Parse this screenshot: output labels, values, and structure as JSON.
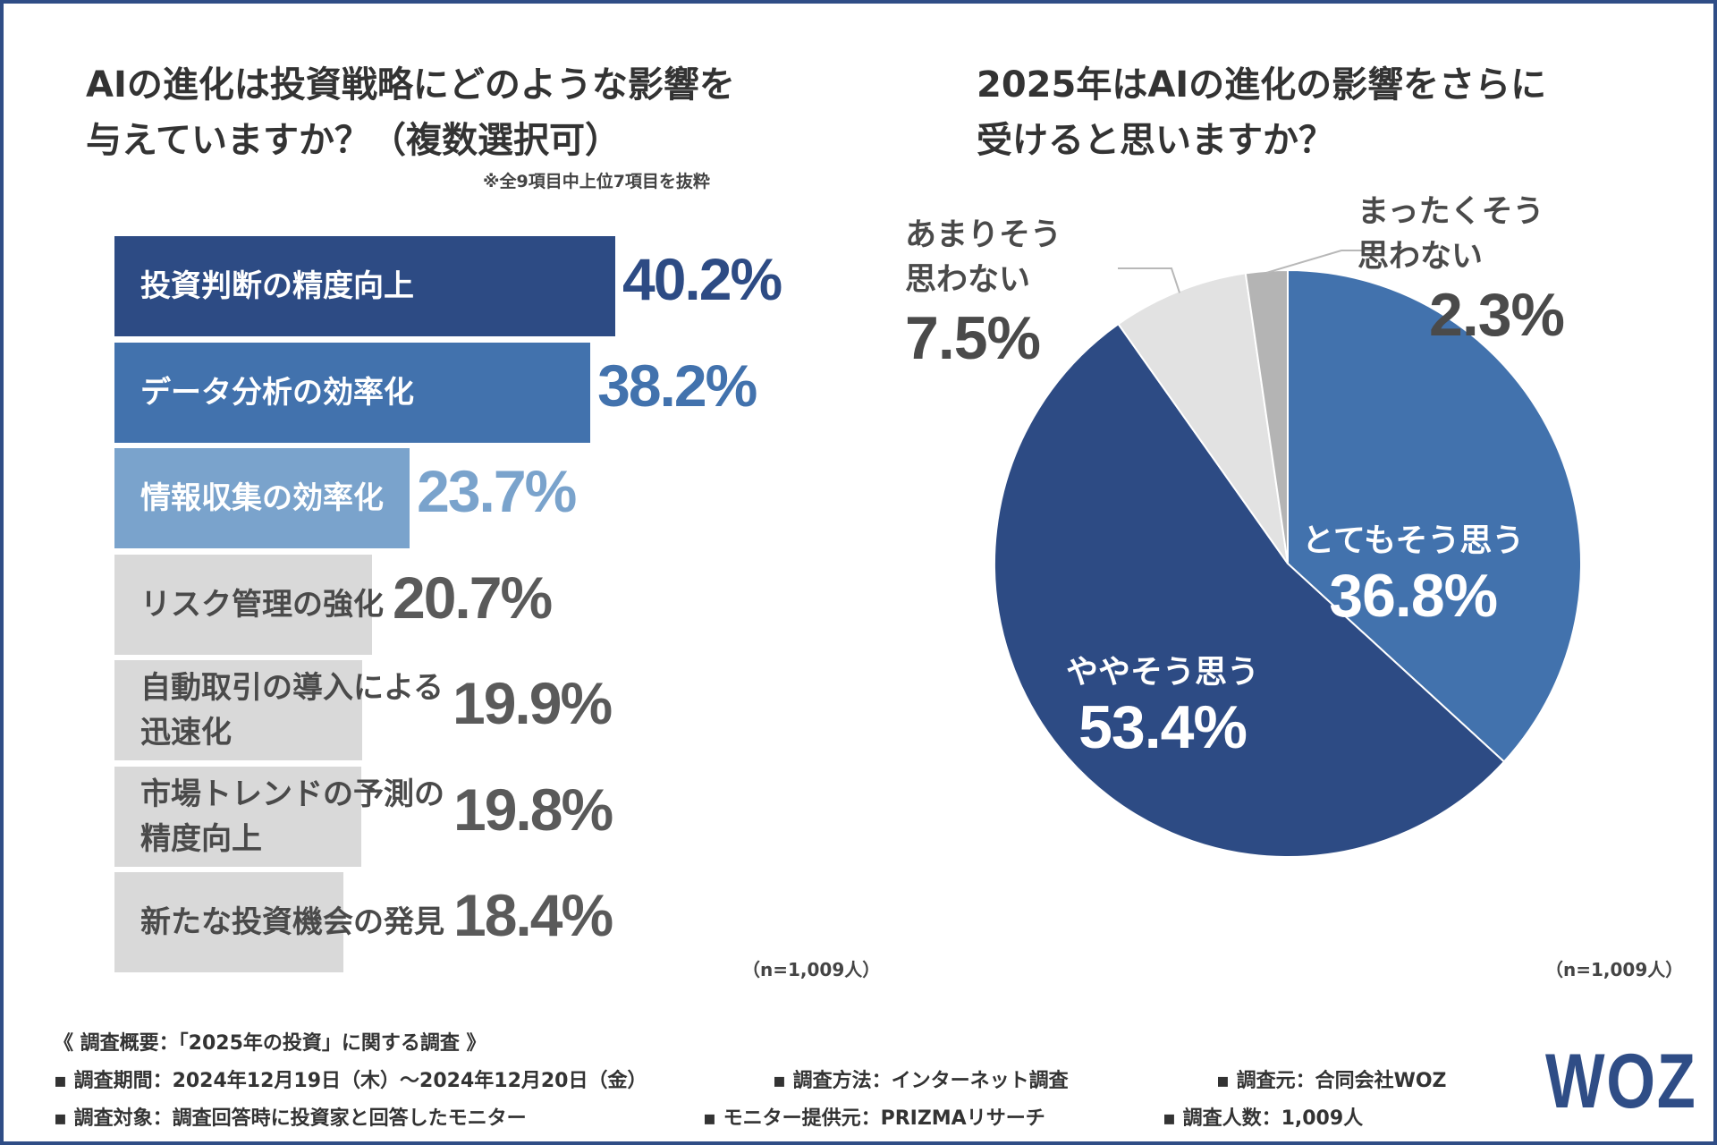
{
  "left_chart": {
    "title_line1": "AIの進化は投資戦略にどのような影響を",
    "title_line2": "与えていますか？（複数選択可）",
    "note": "※全9項目中上位7項目を抜粋",
    "n_note": "（n=1,009人）"
  },
  "right_chart": {
    "title_line1": "2025年はAIの進化の影響をさらに",
    "title_line2": "受けると思いますか？",
    "n_note": "（n=1,009人）"
  },
  "chart_data": [
    {
      "type": "bar",
      "orientation": "horizontal",
      "title": "AIの進化は投資戦略にどのような影響を与えていますか？（複数選択可）",
      "categories": [
        "投資判断の精度向上",
        "データ分析の効率化",
        "情報収集の効率化",
        "リスク管理の強化",
        "自動取引の導入による迅速化",
        "市場トレンドの予測の精度向上",
        "新たな投資機会の発見"
      ],
      "labels_display": [
        [
          "投資判断の精度向上"
        ],
        [
          "データ分析の効率化"
        ],
        [
          "情報収集の効率化"
        ],
        [
          "リスク管理の強化"
        ],
        [
          "自動取引の導入による",
          "迅速化"
        ],
        [
          "市場トレンドの予測の",
          "精度向上"
        ],
        [
          "新たな投資機会の発見"
        ]
      ],
      "values": [
        40.2,
        38.2,
        23.7,
        20.7,
        19.9,
        19.8,
        18.4
      ],
      "value_labels": [
        "40.2%",
        "38.2%",
        "23.7%",
        "20.7%",
        "19.9%",
        "19.8%",
        "18.4%"
      ],
      "unit": "%",
      "xlim": [
        0,
        100
      ],
      "colors": [
        "#2d4b84",
        "#4272ad",
        "#7aa3cc",
        "#d9d9d9",
        "#d9d9d9",
        "#d9d9d9",
        "#d9d9d9"
      ],
      "value_colors": [
        "#2d4b84",
        "#4272ad",
        "#7aa3cc",
        "#5a5a5a",
        "#5a5a5a",
        "#5a5a5a",
        "#5a5a5a"
      ]
    },
    {
      "type": "pie",
      "title": "2025年はAIの進化の影響をさらに受けると思いますか？",
      "slices": [
        {
          "label": "とてもそう思う",
          "value": 36.8,
          "value_label": "36.8%",
          "color": "#4272ad"
        },
        {
          "label": "ややそう思う",
          "value": 53.4,
          "value_label": "53.4%",
          "color": "#2d4b84"
        },
        {
          "label_lines": [
            "あまりそう",
            "思わない"
          ],
          "label": "あまりそう思わない",
          "value": 7.5,
          "value_label": "7.5%",
          "color": "#e2e2e2"
        },
        {
          "label_lines": [
            "まったくそう",
            "思わない"
          ],
          "label": "まったくそう思わない",
          "value": 2.3,
          "value_label": "2.3%",
          "color": "#b4b4b4"
        }
      ]
    }
  ],
  "footer": {
    "heading": "《 調査概要：「2025年の投資」に関する調査 》",
    "items": [
      "▪ 調査期間：2024年12月19日（木）～2024年12月20日（金）",
      "▪ 調査方法：インターネット調査",
      "▪ 調査元：合同会社WOZ",
      "▪ 調査対象：調査回答時に投資家と回答したモニター",
      "▪ モニター提供元：PRIZMAリサーチ",
      "▪ 調査人数：1,009人"
    ],
    "logo": "WOZ"
  }
}
